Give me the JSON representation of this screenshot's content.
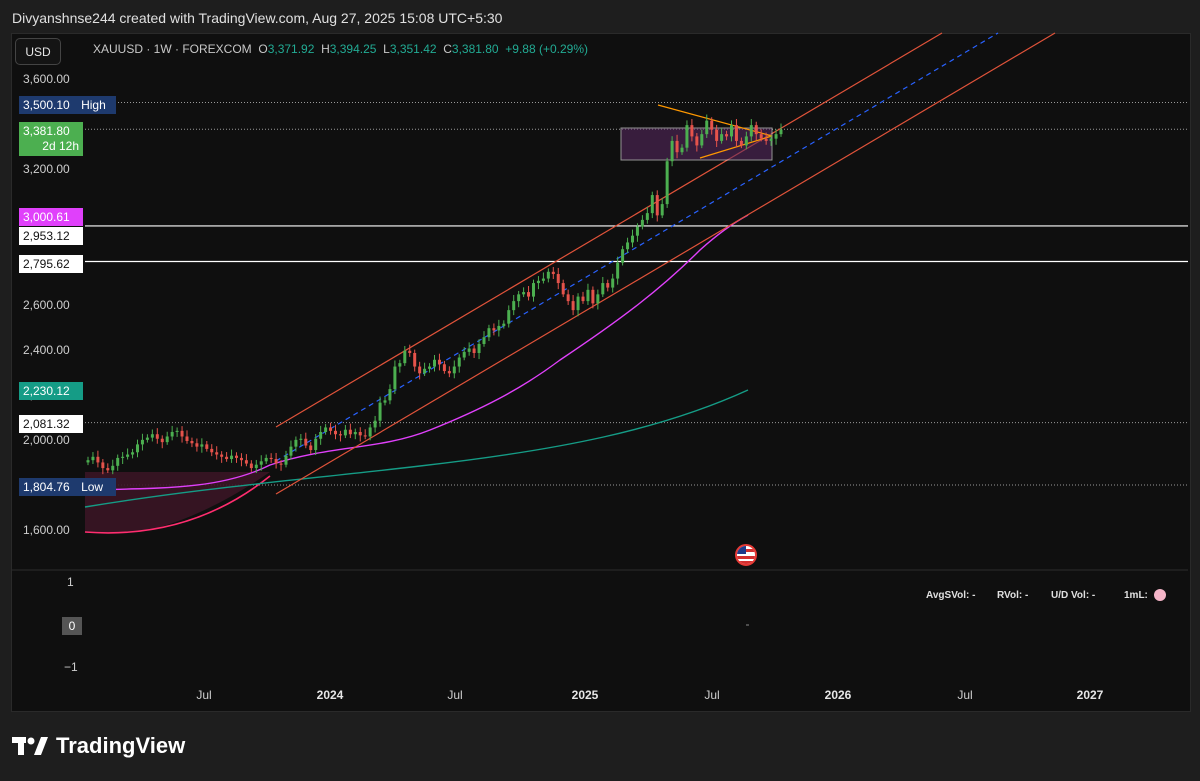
{
  "header": {
    "title": "Divyanshnse244 created with TradingView.com, Aug 27, 2025 15:08 UTC+5:30"
  },
  "currency": "USD",
  "legend": {
    "symbol": "XAUUSD · 1W · FOREXCOM",
    "o_key": "O",
    "o": "3,371.92",
    "h_key": "H",
    "h": "3,394.25",
    "l_key": "L",
    "l": "3,351.42",
    "c_key": "C",
    "c": "3,381.80",
    "change": "+9.88 (+0.29%)"
  },
  "price_labels": {
    "high_value": "3,500.10",
    "high_text": "High",
    "current": "3,381.80",
    "countdown": "2d 12h",
    "magenta": "3,000.61",
    "level_a": "2,953.12",
    "level_b": "2,795.62",
    "teal": "2,230.12",
    "level_c": "2,081.32",
    "low_value": "1,804.76",
    "low_text": "Low"
  },
  "indicator": {
    "ticks": [
      "1",
      "0",
      "−1"
    ],
    "avg": "AvgSVol: -",
    "rvol": "RVol: -",
    "ud": "U/D Vol: -",
    "ml": "1mL:"
  },
  "colors": {
    "up": "#4caf50",
    "down": "#e5534b",
    "channel": "#e0533a",
    "mid": "#2962ff",
    "ma_fast": "#e040fb",
    "ma_slow": "#159c86",
    "box": "#5a2a63"
  },
  "chart_data": {
    "type": "candlestick",
    "symbol": "XAUUSD",
    "interval": "1W",
    "y_ticks": [
      1600,
      2000,
      2200,
      2400,
      2600,
      2800,
      3000,
      3200,
      3600
    ],
    "x_ticks": [
      "Jul",
      "2024",
      "Jul",
      "2025",
      "Jul",
      "2026",
      "Jul",
      "2027"
    ],
    "x_ticks_bold": [
      false,
      true,
      false,
      true,
      false,
      true,
      false,
      true
    ],
    "ylim": [
      1500,
      3650
    ],
    "horizontal_levels": [
      3500.1,
      3381.8,
      2953.12,
      2795.62,
      2081.32,
      1804.76
    ],
    "close_series": [
      1915,
      1930,
      1905,
      1880,
      1870,
      1890,
      1925,
      1930,
      1940,
      1950,
      1985,
      2005,
      2015,
      2030,
      2010,
      1995,
      2020,
      2040,
      2045,
      2020,
      2000,
      1990,
      1975,
      1985,
      1965,
      1950,
      1940,
      1930,
      1920,
      1935,
      1925,
      1915,
      1900,
      1880,
      1895,
      1910,
      1925,
      1920,
      1900,
      1895,
      1935,
      1975,
      2005,
      2010,
      1980,
      1960,
      2010,
      2040,
      2060,
      2045,
      2030,
      2025,
      2050,
      2030,
      2040,
      2025,
      2020,
      2060,
      2090,
      2170,
      2180,
      2230,
      2330,
      2345,
      2400,
      2390,
      2330,
      2300,
      2320,
      2330,
      2360,
      2340,
      2310,
      2300,
      2330,
      2370,
      2395,
      2410,
      2390,
      2430,
      2460,
      2500,
      2490,
      2510,
      2520,
      2580,
      2620,
      2650,
      2660,
      2640,
      2700,
      2710,
      2720,
      2750,
      2740,
      2700,
      2650,
      2620,
      2580,
      2640,
      2620,
      2670,
      2610,
      2650,
      2700,
      2680,
      2720,
      2790,
      2850,
      2880,
      2910,
      2950,
      2980,
      3010,
      3090,
      3000,
      3050,
      3240,
      3330,
      3280,
      3300,
      3400,
      3350,
      3310,
      3360,
      3420,
      3380,
      3330,
      3360,
      3350,
      3400,
      3330,
      3310,
      3350,
      3400,
      3360,
      3340,
      3330,
      3340,
      3360,
      3380
    ]
  }
}
